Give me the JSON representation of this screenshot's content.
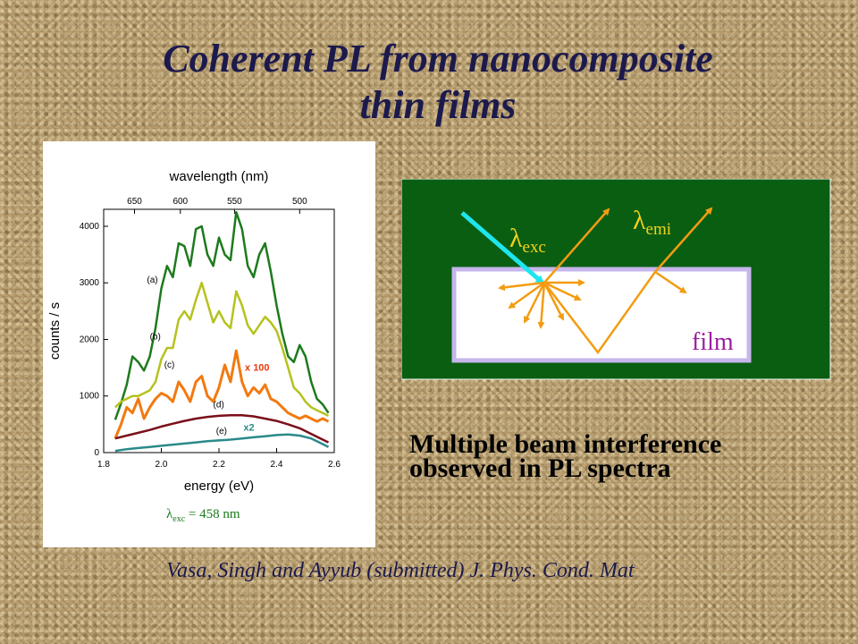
{
  "slide": {
    "title_line1": "Coherent PL from nanocomposite",
    "title_line2": "thin films",
    "caption_line1": "Multiple beam interference",
    "caption_line2": "observed  in PL spectra",
    "citation": "Vasa, Singh and Ayyub (submitted) J. Phys. Cond. Mat",
    "excitation": {
      "symbol": "λ",
      "subscript": "exc",
      "value_text": " = 458 nm"
    },
    "colors": {
      "title": "#1c1a4d",
      "background": "#b79d6e",
      "diagram_bg": "#0a5e12",
      "film_border": "#c6b6ec",
      "ray_orange": "#f39c12",
      "ray_cyan": "#1ee6ee",
      "film_label": "#9b1fa0"
    }
  },
  "diagram": {
    "lambda_exc": {
      "symbol": "λ",
      "subscript": "exc"
    },
    "lambda_emi": {
      "symbol": "λ",
      "subscript": "emi"
    },
    "film_label": "film"
  },
  "chart_data": {
    "type": "line",
    "title": "wavelength (nm)",
    "xlabel": "energy (eV)",
    "ylabel": "counts / s",
    "xlim": [
      1.8,
      2.6
    ],
    "ylim": [
      0,
      4300
    ],
    "x_ticks": [
      "1.8",
      "2.0",
      "2.2",
      "2.4",
      "2.6"
    ],
    "y_ticks": [
      "0",
      "1000",
      "2000",
      "3000",
      "4000"
    ],
    "top_ticks": [
      {
        "label": "650",
        "energy": 1.907
      },
      {
        "label": "600",
        "energy": 2.066
      },
      {
        "label": "550",
        "energy": 2.254
      },
      {
        "label": "500",
        "energy": 2.48
      }
    ],
    "grid": false,
    "annotations": [
      {
        "text": "x 100",
        "x": 2.29,
        "y": 1450,
        "color": "#e8390e"
      },
      {
        "text": "x2",
        "x": 2.285,
        "y": 390,
        "color": "#2a8a8a"
      }
    ],
    "series": [
      {
        "name": "(a)",
        "color": "#1d7a1d",
        "label_at": [
          1.95,
          3000
        ],
        "x": [
          1.84,
          1.86,
          1.88,
          1.9,
          1.92,
          1.94,
          1.96,
          1.98,
          2.0,
          2.02,
          2.04,
          2.06,
          2.08,
          2.1,
          2.12,
          2.14,
          2.16,
          2.18,
          2.2,
          2.22,
          2.24,
          2.26,
          2.28,
          2.3,
          2.32,
          2.34,
          2.36,
          2.38,
          2.4,
          2.42,
          2.44,
          2.46,
          2.48,
          2.5,
          2.52,
          2.54,
          2.56,
          2.58
        ],
        "y": [
          580,
          870,
          1200,
          1700,
          1600,
          1450,
          1700,
          2200,
          2900,
          3300,
          3100,
          3700,
          3650,
          3300,
          3950,
          4000,
          3500,
          3300,
          3800,
          3500,
          3400,
          4250,
          3950,
          3300,
          3100,
          3500,
          3700,
          3200,
          2600,
          2100,
          1700,
          1600,
          1900,
          1700,
          1250,
          950,
          850,
          700
        ]
      },
      {
        "name": "(b)",
        "color": "#b5c21d",
        "label_at": [
          1.96,
          2000
        ],
        "x": [
          1.84,
          1.86,
          1.88,
          1.9,
          1.92,
          1.94,
          1.96,
          1.98,
          2.0,
          2.02,
          2.04,
          2.06,
          2.08,
          2.1,
          2.12,
          2.14,
          2.16,
          2.18,
          2.2,
          2.22,
          2.24,
          2.26,
          2.28,
          2.3,
          2.32,
          2.34,
          2.36,
          2.38,
          2.4,
          2.42,
          2.44,
          2.46,
          2.48,
          2.5,
          2.52,
          2.54,
          2.56,
          2.58
        ],
        "y": [
          800,
          900,
          950,
          1000,
          1000,
          1050,
          1100,
          1250,
          1650,
          1850,
          1850,
          2350,
          2500,
          2350,
          2700,
          3000,
          2650,
          2300,
          2500,
          2300,
          2200,
          2850,
          2600,
          2250,
          2100,
          2250,
          2400,
          2300,
          2150,
          1850,
          1500,
          1150,
          1050,
          900,
          800,
          750,
          700,
          650
        ]
      },
      {
        "name": "(c)",
        "color": "#f27a10",
        "label_at": [
          2.01,
          1500
        ],
        "x": [
          1.84,
          1.86,
          1.88,
          1.9,
          1.92,
          1.94,
          1.96,
          1.98,
          2.0,
          2.02,
          2.04,
          2.06,
          2.08,
          2.1,
          2.12,
          2.14,
          2.16,
          2.18,
          2.2,
          2.22,
          2.24,
          2.26,
          2.28,
          2.3,
          2.32,
          2.34,
          2.36,
          2.38,
          2.4,
          2.42,
          2.44,
          2.46,
          2.48,
          2.5,
          2.52,
          2.54,
          2.56,
          2.58
        ],
        "y": [
          250,
          500,
          800,
          700,
          950,
          600,
          800,
          950,
          1050,
          1000,
          900,
          1250,
          1100,
          900,
          1250,
          1350,
          1000,
          900,
          1150,
          1550,
          1250,
          1800,
          1250,
          1000,
          1150,
          1050,
          1200,
          950,
          900,
          800,
          700,
          650,
          600,
          650,
          600,
          550,
          600,
          550
        ]
      },
      {
        "name": "(d)",
        "color": "#7a0f1a",
        "label_at": [
          2.18,
          800
        ],
        "x": [
          1.84,
          1.88,
          1.92,
          1.96,
          2.0,
          2.04,
          2.08,
          2.12,
          2.16,
          2.2,
          2.24,
          2.28,
          2.32,
          2.36,
          2.4,
          2.44,
          2.48,
          2.52,
          2.56,
          2.58
        ],
        "y": [
          250,
          300,
          350,
          400,
          460,
          510,
          560,
          600,
          630,
          650,
          660,
          660,
          640,
          600,
          560,
          500,
          430,
          330,
          230,
          180
        ]
      },
      {
        "name": "(e)",
        "color": "#2a8a8a",
        "label_at": [
          2.19,
          330
        ],
        "x": [
          1.84,
          1.88,
          1.92,
          1.96,
          2.0,
          2.04,
          2.08,
          2.12,
          2.16,
          2.2,
          2.24,
          2.28,
          2.32,
          2.36,
          2.4,
          2.44,
          2.48,
          2.52,
          2.56,
          2.58
        ],
        "y": [
          30,
          60,
          80,
          100,
          120,
          140,
          160,
          180,
          200,
          215,
          230,
          250,
          270,
          290,
          310,
          320,
          300,
          250,
          150,
          100
        ]
      }
    ]
  }
}
